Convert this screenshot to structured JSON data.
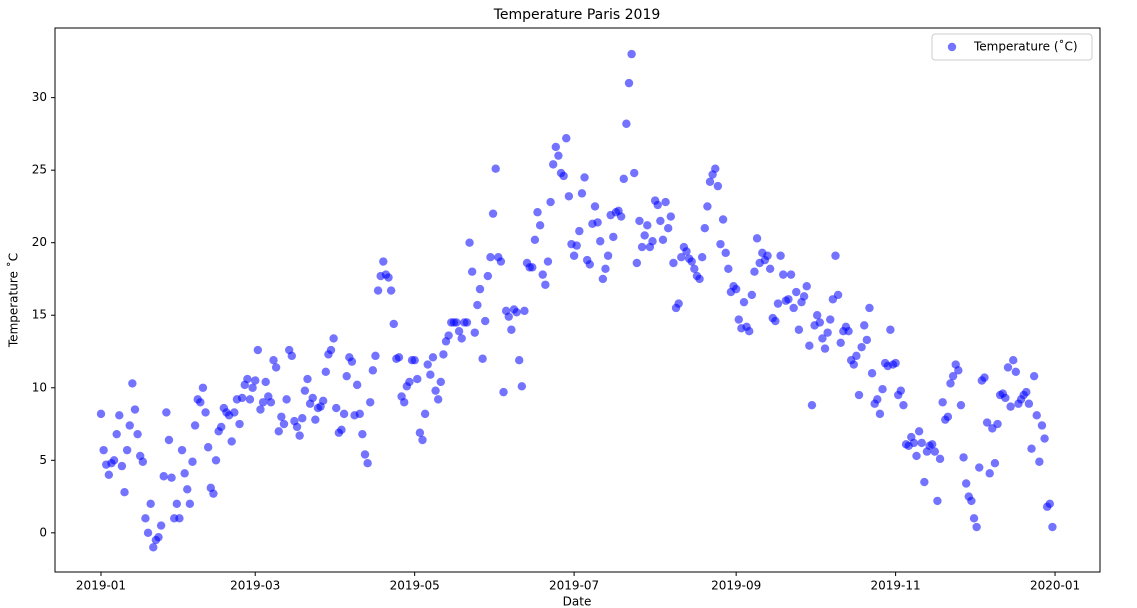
{
  "chart_data": {
    "type": "scatter",
    "title": "Temperature Paris 2019",
    "x_label": "Date",
    "y_label": "Temperature ˚C",
    "x": [
      0,
      1,
      2,
      3,
      4,
      5,
      6,
      7,
      8,
      9,
      10,
      11,
      12,
      13,
      14,
      15,
      16,
      17,
      18,
      19,
      20,
      21,
      22,
      23,
      24,
      25,
      26,
      27,
      28,
      29,
      30,
      31,
      32,
      33,
      34,
      35,
      36,
      37,
      38,
      39,
      40,
      41,
      42,
      43,
      44,
      45,
      46,
      47,
      48,
      49,
      50,
      51,
      52,
      53,
      54,
      55,
      56,
      57,
      58,
      59,
      60,
      61,
      62,
      63,
      64,
      65,
      66,
      67,
      68,
      69,
      70,
      71,
      72,
      73,
      74,
      75,
      76,
      77,
      78,
      79,
      80,
      81,
      82,
      83,
      84,
      85,
      86,
      87,
      88,
      89,
      90,
      91,
      92,
      93,
      94,
      95,
      96,
      97,
      98,
      99,
      100,
      101,
      102,
      103,
      104,
      105,
      106,
      107,
      108,
      109,
      110,
      111,
      112,
      113,
      114,
      115,
      116,
      117,
      118,
      119,
      120,
      121,
      122,
      123,
      124,
      125,
      126,
      127,
      128,
      129,
      130,
      131,
      132,
      133,
      134,
      135,
      136,
      137,
      138,
      139,
      140,
      141,
      142,
      143,
      144,
      145,
      146,
      147,
      148,
      149,
      150,
      151,
      152,
      153,
      154,
      155,
      156,
      157,
      158,
      159,
      160,
      161,
      162,
      163,
      164,
      165,
      166,
      167,
      168,
      169,
      170,
      171,
      172,
      173,
      174,
      175,
      176,
      177,
      178,
      179,
      180,
      181,
      182,
      183,
      184,
      185,
      186,
      187,
      188,
      189,
      190,
      191,
      192,
      193,
      194,
      195,
      196,
      197,
      198,
      199,
      200,
      201,
      202,
      203,
      204,
      205,
      206,
      207,
      208,
      209,
      210,
      211,
      212,
      213,
      214,
      215,
      216,
      217,
      218,
      219,
      220,
      221,
      222,
      223,
      224,
      225,
      226,
      227,
      228,
      229,
      230,
      231,
      232,
      233,
      234,
      235,
      236,
      237,
      238,
      239,
      240,
      241,
      242,
      243,
      244,
      245,
      246,
      247,
      248,
      249,
      250,
      251,
      252,
      253,
      254,
      255,
      256,
      257,
      258,
      259,
      260,
      261,
      262,
      263,
      264,
      265,
      266,
      267,
      268,
      269,
      270,
      271,
      272,
      273,
      274,
      275,
      276,
      277,
      278,
      279,
      280,
      281,
      282,
      283,
      284,
      285,
      286,
      287,
      288,
      289,
      290,
      291,
      292,
      293,
      294,
      295,
      296,
      297,
      298,
      299,
      300,
      301,
      302,
      303,
      304,
      305,
      306,
      307,
      308,
      309,
      310,
      311,
      312,
      313,
      314,
      315,
      316,
      317,
      318,
      319,
      320,
      321,
      322,
      323,
      324,
      325,
      326,
      327,
      328,
      329,
      330,
      331,
      332,
      333,
      334,
      335,
      336,
      337,
      338,
      339,
      340,
      341,
      342,
      343,
      344,
      345,
      346,
      347,
      348,
      349,
      350,
      351,
      352,
      353,
      354,
      355,
      356,
      357,
      358,
      359,
      360,
      361,
      362,
      363,
      364
    ],
    "series": [
      {
        "name": "Temperature (˚C)",
        "color": "#0000ff",
        "alpha": 0.55,
        "values": [
          8.2,
          5.7,
          4.7,
          4,
          4.8,
          5,
          6.8,
          8.1,
          4.6,
          2.8,
          5.7,
          7.4,
          10.3,
          8.5,
          6.8,
          5.3,
          4.9,
          1,
          0,
          2,
          -1,
          -0.5,
          -0.3,
          0.5,
          3.9,
          8.3,
          6.4,
          3.8,
          1,
          2,
          1,
          5.7,
          4.1,
          3,
          2,
          4.9,
          7.4,
          9.2,
          9,
          10,
          8.3,
          5.9,
          3.1,
          2.7,
          5,
          7,
          7.3,
          8.6,
          8.3,
          8.1,
          6.3,
          8.3,
          9.2,
          7.5,
          9.3,
          10.2,
          10.6,
          9.2,
          10,
          10.5,
          12.6,
          8.5,
          9,
          10.4,
          9.4,
          9,
          11.9,
          11.4,
          7,
          8,
          7.5,
          9.2,
          12.6,
          12.2,
          7.7,
          7.3,
          6.7,
          7.9,
          9.8,
          10.6,
          8.9,
          9.3,
          7.8,
          8.6,
          8.7,
          9.1,
          11.1,
          12.3,
          12.6,
          13.4,
          8.6,
          6.9,
          7.1,
          8.2,
          10.8,
          12.1,
          11.8,
          8.1,
          10.2,
          8.2,
          6.8,
          5.4,
          4.8,
          9,
          11.2,
          12.2,
          16.7,
          17.7,
          18.7,
          17.8,
          17.6,
          16.7,
          14.4,
          12,
          12.1,
          9.4,
          9,
          10.1,
          10.4,
          11.9,
          11.9,
          10.6,
          6.9,
          6.4,
          8.2,
          11.6,
          10.9,
          12.1,
          9.8,
          9.2,
          10.4,
          12.3,
          13.2,
          13.6,
          14.5,
          14.5,
          14.5,
          13.9,
          13.4,
          14.5,
          14.5,
          20,
          18,
          13.8,
          15.7,
          16.8,
          12,
          14.6,
          17.7,
          19,
          22,
          25.1,
          19,
          18.7,
          9.7,
          15.3,
          14.9,
          14,
          15.4,
          15.2,
          11.9,
          10.1,
          15.3,
          18.6,
          18.3,
          18.3,
          20.2,
          22.1,
          21.2,
          17.8,
          17.1,
          18.7,
          22.8,
          25.4,
          26.6,
          26,
          24.8,
          24.6,
          27.2,
          23.2,
          19.9,
          19.1,
          19.8,
          20.8,
          23.4,
          24.5,
          18.8,
          18.5,
          21.3,
          22.5,
          21.4,
          20.1,
          17.5,
          18.2,
          19.1,
          21.9,
          20.4,
          22.1,
          22.2,
          21.8,
          24.4,
          28.2,
          31,
          33,
          24.8,
          18.6,
          21.5,
          19.7,
          20.5,
          21.2,
          19.7,
          20.1,
          22.9,
          22.6,
          21.5,
          20.2,
          22.8,
          21,
          21.8,
          18.6,
          15.5,
          15.8,
          19,
          19.7,
          19.4,
          18.9,
          18.7,
          18.2,
          17.7,
          17.5,
          19,
          21,
          22.5,
          24.2,
          24.7,
          25.1,
          23.9,
          19.9,
          21.6,
          19.3,
          18.2,
          16.6,
          17,
          16.8,
          14.7,
          14.1,
          15.9,
          14.2,
          13.9,
          16.4,
          18,
          20.3,
          18.6,
          19.3,
          18.8,
          19.1,
          18.2,
          14.8,
          14.6,
          15.8,
          19.1,
          17.8,
          16,
          16.1,
          17.8,
          15.5,
          16.6,
          14,
          15.9,
          16.3,
          17,
          12.9,
          8.8,
          14.3,
          15,
          14.5,
          13.4,
          12.7,
          13.8,
          14.7,
          16.1,
          19.1,
          16.4,
          13.1,
          13.9,
          14.2,
          13.9,
          11.9,
          11.6,
          12.2,
          9.5,
          12.8,
          14.3,
          13.3,
          15.5,
          11,
          8.9,
          9.2,
          8.2,
          9.9,
          11.7,
          11.5,
          14,
          11.6,
          11.7,
          9.5,
          9.8,
          8.8,
          6.1,
          6,
          6.6,
          6.2,
          5.3,
          7,
          6.2,
          3.5,
          5.6,
          6,
          6.1,
          5.6,
          2.2,
          5.1,
          9,
          7.8,
          8,
          10.3,
          10.8,
          11.6,
          11.2,
          8.8,
          5.2,
          3.4,
          2.5,
          2.2,
          1,
          0.4,
          4.5,
          10.5,
          10.7,
          7.6,
          4.1,
          7.2,
          4.8,
          7.5,
          9.5,
          9.6,
          9.3,
          11.4,
          8.7,
          11.9,
          11.1,
          8.9,
          9.2,
          9.5,
          9.7,
          8.9,
          5.8,
          10.8,
          8.1,
          4.9,
          7.4,
          6.5,
          1.8,
          2,
          0.4
        ]
      }
    ],
    "xlim": [
      -17.6,
      382.2
    ],
    "ylim": [
      -2.7,
      34.8
    ],
    "xticks": [
      {
        "value": 0,
        "label": "2019-01"
      },
      {
        "value": 59,
        "label": "2019-03"
      },
      {
        "value": 120,
        "label": "2019-05"
      },
      {
        "value": 181,
        "label": "2019-07"
      },
      {
        "value": 243,
        "label": "2019-09"
      },
      {
        "value": 304,
        "label": "2019-11"
      },
      {
        "value": 365,
        "label": "2020-01"
      }
    ],
    "yticks": [
      0,
      5,
      10,
      15,
      20,
      25,
      30
    ],
    "grid": false,
    "legend": "upper right"
  }
}
